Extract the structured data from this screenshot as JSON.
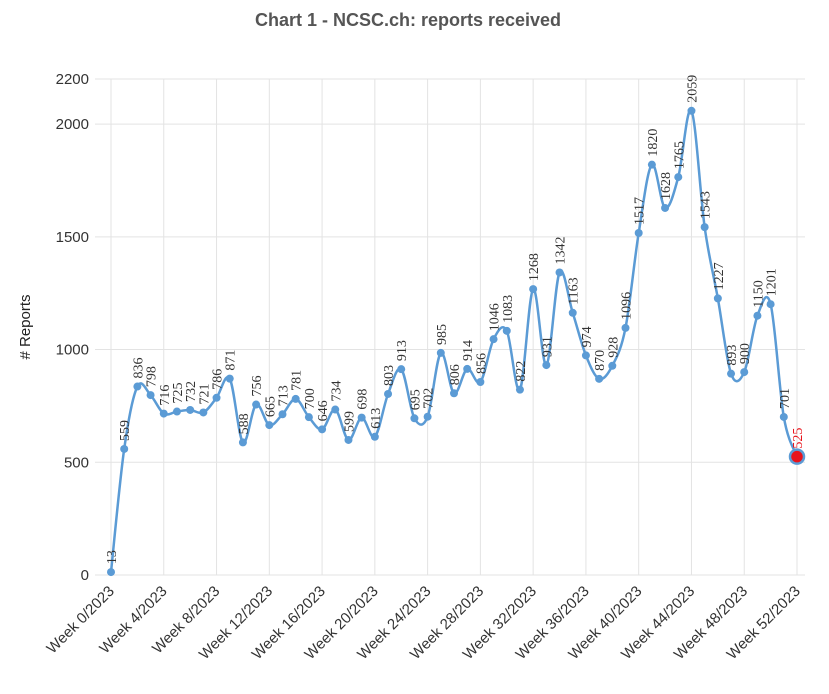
{
  "chart_data": {
    "type": "line",
    "title": "Chart 1 - NCSC.ch: reports received",
    "ylabel": "# Reports",
    "xlabel": "",
    "ylim": [
      0,
      2200
    ],
    "yticks": [
      0,
      500,
      1000,
      1500,
      2000,
      2200
    ],
    "grid": true,
    "color": "#5b9bd5",
    "highlight_color": "#e8141c",
    "xtick_labels": [
      "Week 0/2023",
      "Week 4/2023",
      "Week 8/2023",
      "Week 12/2023",
      "Week 16/2023",
      "Week 20/2023",
      "Week 24/2023",
      "Week 28/2023",
      "Week 32/2023",
      "Week 36/2023",
      "Week 40/2023",
      "Week 44/2023",
      "Week 48/2023",
      "Week 52/2023"
    ],
    "xtick_weeks": [
      0,
      4,
      8,
      12,
      16,
      20,
      24,
      28,
      32,
      36,
      40,
      44,
      48,
      52
    ],
    "series": [
      {
        "weeks": [
          0,
          1,
          2,
          3,
          4,
          5,
          6,
          7,
          8,
          9,
          10,
          11,
          12,
          13,
          14,
          15,
          16,
          17,
          18,
          19,
          20,
          21,
          22,
          23,
          24,
          25,
          26,
          27,
          28,
          29,
          30,
          31,
          32,
          33,
          34,
          35,
          36,
          37,
          38,
          39,
          40,
          41,
          42,
          43,
          44,
          45,
          46,
          47,
          48,
          49,
          50,
          51,
          52
        ],
        "values": [
          13,
          559,
          836,
          798,
          716,
          725,
          732,
          721,
          786,
          871,
          588,
          756,
          665,
          713,
          781,
          700,
          646,
          734,
          599,
          698,
          613,
          803,
          913,
          695,
          702,
          985,
          806,
          914,
          856,
          1046,
          1083,
          822,
          1268,
          931,
          1342,
          1163,
          974,
          870,
          928,
          1096,
          1517,
          1820,
          1628,
          1765,
          2059,
          1543,
          1227,
          893,
          900,
          1150,
          1201,
          701,
          525
        ]
      }
    ]
  }
}
